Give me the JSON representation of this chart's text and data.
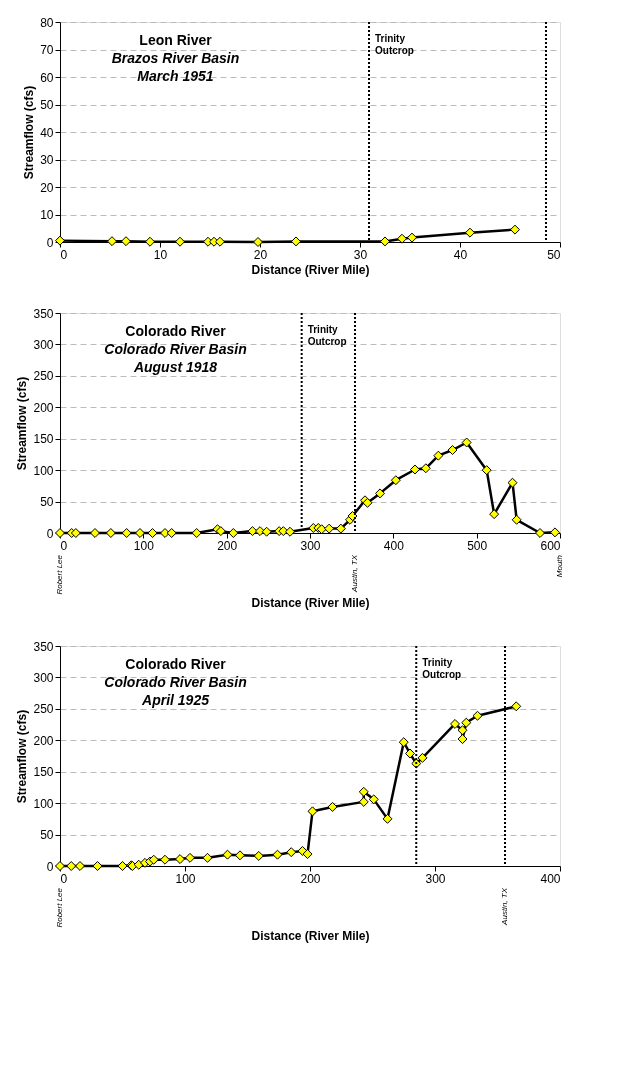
{
  "chart_data": [
    {
      "type": "line",
      "title": "Leon River",
      "subtitle": "Brazos River Basin\nMarch 1951",
      "xlabel": "Distance (River Mile)",
      "ylabel": "Streamflow (cfs)",
      "xlim": [
        0,
        50
      ],
      "xticks": [
        0,
        10,
        20,
        30,
        40,
        50
      ],
      "ylim": [
        0,
        80
      ],
      "yticks": [
        0,
        10,
        20,
        30,
        40,
        50,
        60,
        70,
        80
      ],
      "grid": "y",
      "marker": "diamond",
      "line_style": "solid",
      "legend": false,
      "series": [
        {
          "color": "#ffff00",
          "x": [
            0,
            5.2,
            6.6,
            9,
            12,
            14.8,
            15.4,
            16,
            19.8,
            23.6,
            32.5,
            34.2,
            35.2,
            41,
            45.5
          ],
          "values": [
            0.5,
            0.3,
            0.3,
            0.1,
            0.1,
            0.1,
            0.1,
            0.1,
            0,
            0.2,
            0.2,
            1.2,
            1.6,
            3.4,
            4.5
          ]
        }
      ],
      "ref_lines": [
        {
          "axis": "x",
          "value": 30.9,
          "label": "Trinity Outcrop",
          "line_style": "dotted",
          "color": "#000000"
        },
        {
          "axis": "x",
          "value": 48.6,
          "line_style": "dotted",
          "color": "#000000"
        }
      ]
    },
    {
      "type": "line",
      "title": "Colorado River",
      "subtitle": "Colorado River Basin\nAugust 1918",
      "xlabel": "Distance (River Mile)",
      "ylabel": "Streamflow (cfs)",
      "xlim": [
        0,
        600
      ],
      "xticks": [
        0,
        100,
        200,
        300,
        400,
        500,
        600
      ],
      "ylim": [
        0,
        350
      ],
      "yticks": [
        0,
        50,
        100,
        150,
        200,
        250,
        300,
        350
      ],
      "grid": "y",
      "marker": "diamond",
      "line_style": "solid",
      "legend": false,
      "series": [
        {
          "color": "#ffff00",
          "x": [
            0,
            14,
            19,
            42,
            61,
            80,
            96,
            111,
            126,
            134,
            164,
            189,
            193,
            208,
            231,
            240,
            248,
            263,
            268,
            276,
            304,
            310,
            314,
            323,
            337,
            348,
            351,
            366,
            369,
            384,
            403,
            426,
            439,
            454,
            471,
            488,
            512,
            521,
            543,
            548,
            576,
            594
          ],
          "values": [
            0,
            0,
            0,
            0,
            0,
            0,
            0,
            0,
            0,
            0,
            0,
            6,
            3,
            0,
            3,
            3,
            2,
            3,
            3,
            2,
            8,
            8,
            6,
            7,
            7,
            21,
            27,
            52,
            48,
            63,
            84,
            101,
            103,
            123,
            132,
            144,
            100,
            30,
            80,
            21,
            0,
            1
          ]
        }
      ],
      "ref_lines": [
        {
          "axis": "x",
          "value": 290,
          "label": "Trinity Outcrop",
          "line_style": "dotted",
          "color": "#000000"
        },
        {
          "axis": "x",
          "value": 354,
          "line_style": "dotted",
          "color": "#000000"
        }
      ],
      "annotations": [
        "Robert Lee",
        "Austin, TX",
        "Mouth"
      ]
    },
    {
      "type": "line",
      "title": "Colorado River",
      "subtitle": "Colorado River Basin\nApril 1925",
      "xlabel": "Distance (River Mile)",
      "ylabel": "Streamflow (cfs)",
      "xlim": [
        0,
        400
      ],
      "xticks": [
        0,
        100,
        200,
        300,
        400
      ],
      "ylim": [
        0,
        350
      ],
      "yticks": [
        0,
        50,
        100,
        150,
        200,
        250,
        300,
        350
      ],
      "grid": "y",
      "marker": "diamond",
      "line_style": "solid",
      "legend": false,
      "series": [
        {
          "color": "#ffff00",
          "x": [
            0,
            9,
            16,
            30,
            50,
            57,
            58,
            63,
            68,
            72,
            75,
            84,
            96,
            104,
            118,
            134,
            144,
            159,
            174,
            185,
            194,
            198,
            202,
            218,
            243,
            243,
            251,
            262,
            275,
            280,
            285,
            290,
            316,
            322,
            322,
            325,
            334,
            365
          ],
          "values": [
            0,
            0,
            0,
            0,
            0,
            1,
            0,
            2,
            5,
            7,
            10,
            10,
            11,
            13,
            13,
            18,
            17,
            16,
            18,
            22,
            24,
            19,
            87,
            94,
            102,
            118,
            106,
            75,
            197,
            179,
            163,
            172,
            226,
            216,
            202,
            228,
            239,
            254
          ]
        }
      ],
      "ref_lines": [
        {
          "axis": "x",
          "value": 285,
          "label": "Trinity Outcrop",
          "line_style": "dotted",
          "color": "#000000"
        },
        {
          "axis": "x",
          "value": 356,
          "line_style": "dotted",
          "color": "#000000"
        }
      ],
      "annotations": [
        "Robert Lee",
        "Austin, TX"
      ]
    }
  ]
}
